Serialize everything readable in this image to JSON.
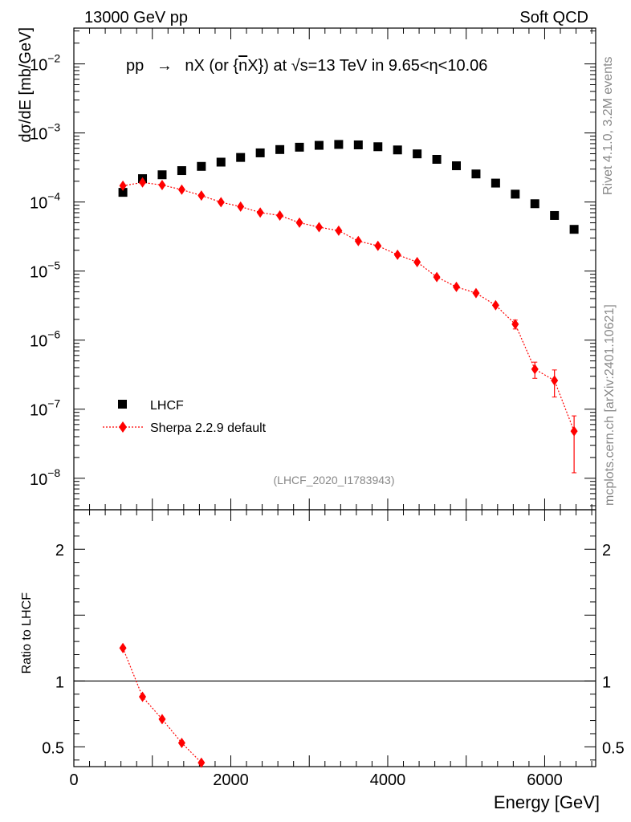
{
  "header": {
    "left": "13000 GeV pp",
    "right": "Soft QCD"
  },
  "side": {
    "rivet": "Rivet 4.1.0,  3.2M events",
    "mcplots": "mcplots.cern.ch [arXiv:2401.10621]"
  },
  "analysis_id": "(LHCF_2020_I1783943)",
  "chart_data": [
    {
      "type": "scatter",
      "panel": "main",
      "title": "pp → nX (or n̄X) at √s=13 TeV in 9.65<η<10.06",
      "title_parts": {
        "a": "pp",
        "arrow": "→",
        "b": "nX (or {",
        "nbar": "n",
        "c": "X}) at ",
        "sqrt": "√",
        "d": "s=13 TeV in 9.65<",
        "eta": "η",
        "e": "<10.06"
      },
      "xlabel": "Energy [GeV]",
      "ylabel": "dσ/dE [mb/GeV]",
      "yscale": "log",
      "xlim": [
        0,
        6650
      ],
      "ylim": [
        3.5e-09,
        0.033
      ],
      "y_tick_labels": [
        {
          "base": "10",
          "exp": "−8",
          "value": 1e-08
        },
        {
          "base": "10",
          "exp": "−7",
          "value": 1e-07
        },
        {
          "base": "10",
          "exp": "−6",
          "value": 1e-06
        },
        {
          "base": "10",
          "exp": "−5",
          "value": 1e-05
        },
        {
          "base": "10",
          "exp": "−4",
          "value": 0.0001
        },
        {
          "base": "10",
          "exp": "−3",
          "value": 0.001
        },
        {
          "base": "10",
          "exp": "−2",
          "value": 0.01
        }
      ],
      "legend": [
        {
          "name": "LHCF",
          "marker": "square",
          "color": "#000000"
        },
        {
          "name": "Sherpa 2.2.9 default",
          "marker": "diamond",
          "color": "#ff0000"
        }
      ],
      "series": [
        {
          "name": "LHCF",
          "color": "#000000",
          "x": [
            625,
            875,
            1125,
            1375,
            1625,
            1875,
            2125,
            2375,
            2625,
            2875,
            3125,
            3375,
            3625,
            3875,
            4125,
            4375,
            4625,
            4875,
            5125,
            5375,
            5625,
            5875,
            6125,
            6375
          ],
          "y": [
            0.000138,
            0.000218,
            0.000248,
            0.000285,
            0.000328,
            0.000378,
            0.000442,
            0.000515,
            0.000575,
            0.000622,
            0.000662,
            0.000682,
            0.000672,
            0.000632,
            0.000568,
            0.000498,
            0.000415,
            0.000335,
            0.000255,
            0.000188,
            0.00013,
            9.45e-05,
            6.38e-05,
            4.02e-05
          ]
        },
        {
          "name": "Sherpa 2.2.9 default",
          "color": "#ff0000",
          "x": [
            625,
            875,
            1125,
            1375,
            1625,
            1875,
            2125,
            2375,
            2625,
            2875,
            3125,
            3375,
            3625,
            3875,
            4125,
            4375,
            4625,
            4875,
            5125,
            5375,
            5625,
            5875,
            6125,
            6375
          ],
          "y": [
            0.000172,
            0.000192,
            0.000176,
            0.000151,
            0.000124,
            9.94e-05,
            8.57e-05,
            7.04e-05,
            6.38e-05,
            5.02e-05,
            4.32e-05,
            3.85e-05,
            2.72e-05,
            2.32e-05,
            1.72e-05,
            1.35e-05,
            8.2e-06,
            5.9e-06,
            4.8e-06,
            3.2e-06,
            1.7e-06,
            3.8e-07,
            2.6e-07,
            4.8e-08
          ],
          "err_low": [
            0,
            0,
            0,
            0,
            0,
            0,
            0,
            0,
            0,
            0,
            0,
            0,
            0,
            0,
            0,
            0,
            0,
            0,
            0,
            0,
            2.5e-07,
            1e-07,
            1.1e-07,
            3.6e-08
          ],
          "err_high": [
            0,
            0,
            0,
            0,
            0,
            0,
            0,
            0,
            0,
            0,
            0,
            0,
            0,
            0,
            0,
            0,
            0,
            0,
            0,
            0,
            2.5e-07,
            1e-07,
            1.1e-07,
            3.2e-08
          ]
        }
      ]
    },
    {
      "type": "line",
      "panel": "ratio",
      "ylabel": "Ratio to LHCF",
      "xlabel": "Energy [GeV]",
      "xlim": [
        0,
        6650
      ],
      "ylim": [
        0.35,
        2.3
      ],
      "x_tick_labels": [
        "0",
        "2000",
        "4000",
        "6000"
      ],
      "x_tick_values": [
        0,
        2000,
        4000,
        6000
      ],
      "y_tick_labels": [
        "0.5",
        "1",
        "2"
      ],
      "y_tick_values": [
        0.5,
        1,
        2
      ],
      "reference_line": 1,
      "series": [
        {
          "name": "Sherpa 2.2.9 default",
          "color": "#ff0000",
          "x": [
            625,
            875,
            1125,
            1375,
            1625
          ],
          "y": [
            1.25,
            0.88,
            0.71,
            0.53,
            0.38
          ]
        }
      ]
    }
  ]
}
